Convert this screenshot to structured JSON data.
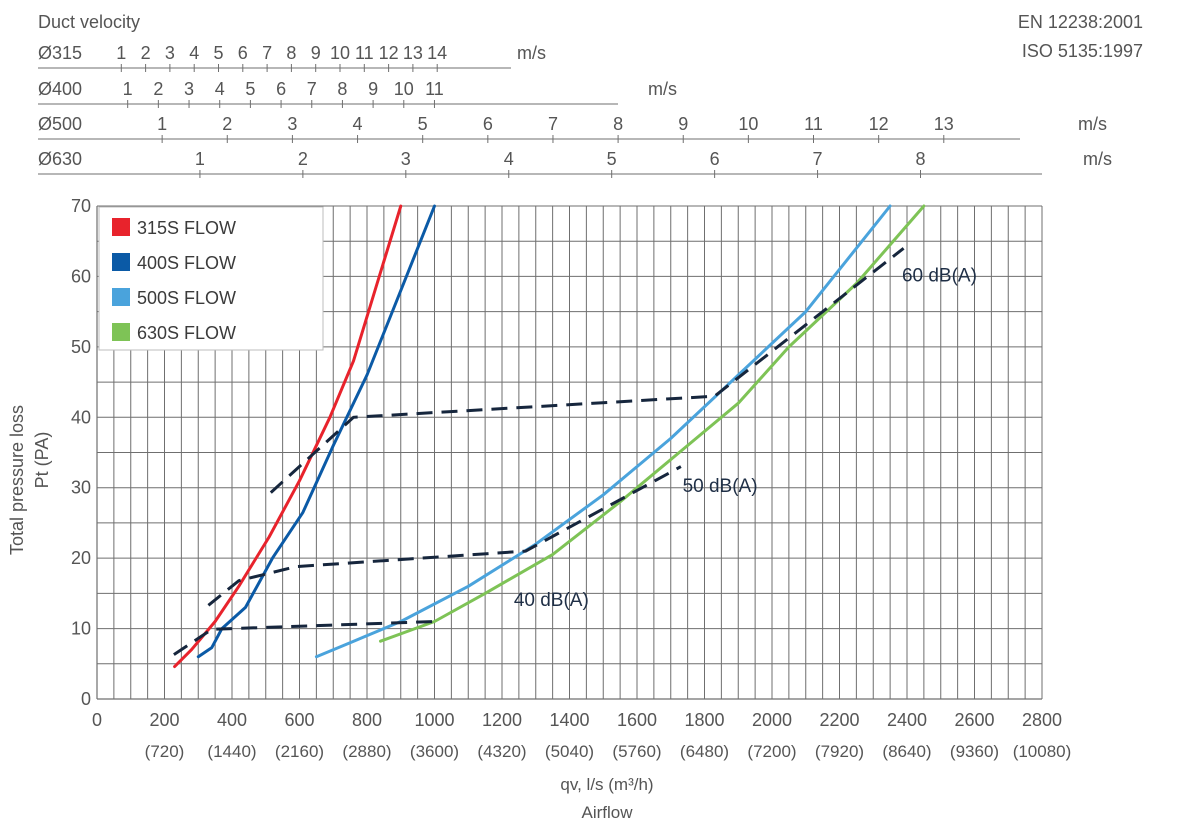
{
  "chart_data": {
    "type": "line",
    "standards": [
      "EN 12238:2001",
      "ISO 5135:1997"
    ],
    "duct_velocity": {
      "title": "Duct velocity",
      "unit": "m/s",
      "scales": [
        {
          "name": "Ø315",
          "flow_per_mps": 72,
          "values": [
            1,
            2,
            3,
            4,
            5,
            6,
            7,
            8,
            9,
            10,
            11,
            12,
            13,
            14
          ]
        },
        {
          "name": "Ø400",
          "flow_per_mps": 90.9,
          "values": [
            1,
            2,
            3,
            4,
            5,
            6,
            7,
            8,
            9,
            10,
            11
          ]
        },
        {
          "name": "Ø500",
          "flow_per_mps": 193,
          "values": [
            1,
            2,
            3,
            4,
            5,
            6,
            7,
            8,
            9,
            10,
            11,
            12,
            13
          ]
        },
        {
          "name": "Ø630",
          "flow_per_mps": 305,
          "values": [
            1,
            2,
            3,
            4,
            5,
            6,
            7,
            8
          ]
        }
      ]
    },
    "xlabel": "qv, l/s (m³/h)",
    "xlabel2": "Airflow",
    "ylabel": "Total pressure loss",
    "ylabel2": "Pt (PA)",
    "xlim": [
      0,
      2800
    ],
    "ylim": [
      0,
      70
    ],
    "x_ticks": [
      {
        "value": 0,
        "label": "0",
        "sub": ""
      },
      {
        "value": 200,
        "label": "200",
        "sub": "(720)"
      },
      {
        "value": 400,
        "label": "400",
        "sub": "(1440)"
      },
      {
        "value": 600,
        "label": "600",
        "sub": "(2160)"
      },
      {
        "value": 800,
        "label": "800",
        "sub": "(2880)"
      },
      {
        "value": 1000,
        "label": "1000",
        "sub": "(3600)"
      },
      {
        "value": 1200,
        "label": "1200",
        "sub": "(4320)"
      },
      {
        "value": 1400,
        "label": "1400",
        "sub": "(5040)"
      },
      {
        "value": 1600,
        "label": "1600",
        "sub": "(5760)"
      },
      {
        "value": 1800,
        "label": "1800",
        "sub": "(6480)"
      },
      {
        "value": 2000,
        "label": "2000",
        "sub": "(7200)"
      },
      {
        "value": 2200,
        "label": "2200",
        "sub": "(7920)"
      },
      {
        "value": 2400,
        "label": "2400",
        "sub": "(8640)"
      },
      {
        "value": 2600,
        "label": "2600",
        "sub": "(9360)"
      },
      {
        "value": 2800,
        "label": "2800",
        "sub": "(10080)"
      }
    ],
    "y_ticks": [
      0,
      10,
      20,
      30,
      40,
      50,
      60,
      70
    ],
    "grid": true,
    "legend_position": "top-left",
    "series": [
      {
        "name": "315S FLOW",
        "color": "#e8232c",
        "x": [
          230,
          280,
          350,
          420,
          510,
          600,
          690,
          760,
          830,
          900
        ],
        "y": [
          4.6,
          7,
          11,
          16,
          23,
          31,
          40,
          48,
          59,
          70
        ]
      },
      {
        "name": "400S FLOW",
        "color": "#0b5aa6",
        "x": [
          300,
          340,
          370,
          440,
          520,
          610,
          700,
          800,
          900,
          1000
        ],
        "y": [
          6,
          7.3,
          10,
          13,
          20,
          26.5,
          36,
          46,
          58,
          70
        ]
      },
      {
        "name": "500S FLOW",
        "color": "#4aa3dc",
        "x": [
          650,
          750,
          900,
          1100,
          1300,
          1500,
          1700,
          1900,
          2100,
          2350
        ],
        "y": [
          6,
          8,
          11,
          16,
          22,
          29,
          37,
          46,
          55,
          70
        ]
      },
      {
        "name": "630S FLOW",
        "color": "#7ec356",
        "x": [
          840,
          1000,
          1150,
          1350,
          1550,
          1750,
          1900,
          2050,
          2250,
          2450
        ],
        "y": [
          8.2,
          11,
          15,
          20.5,
          28,
          36,
          42,
          50,
          59,
          70
        ]
      }
    ],
    "sound_lines": [
      {
        "label": "40 dB(A)",
        "x": [
          228,
          340,
          1000
        ],
        "y": [
          6.3,
          9.9,
          11
        ]
      },
      {
        "label": "50 dB(A)",
        "x": [
          330,
          420,
          590,
          1270,
          1730
        ],
        "y": [
          13.3,
          16.8,
          18.8,
          21,
          33
        ]
      },
      {
        "label": "60 dB(A)",
        "x": [
          515,
          760,
          1830,
          2390
        ],
        "y": [
          29.3,
          40,
          43,
          64
        ]
      }
    ],
    "annotations": [
      {
        "text": "40 dB(A)",
        "x": 1235,
        "y": 14.2
      },
      {
        "text": "50 dB(A)",
        "x": 1735,
        "y": 30.4
      },
      {
        "text": "60 dB(A)",
        "x": 2385,
        "y": 60.3
      }
    ],
    "colors": {
      "grid": "#6f6f6f",
      "dash": "#16263d",
      "text": "#555555"
    }
  }
}
